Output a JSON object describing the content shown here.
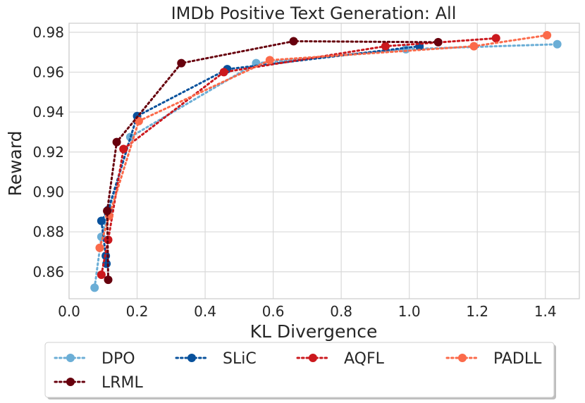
{
  "chart_data": {
    "type": "line",
    "title": "IMDb Positive Text Generation: All",
    "xlabel": "KL Divergence",
    "ylabel": "Reward",
    "xlim": [
      0.0,
      1.5
    ],
    "ylim": [
      0.8465,
      0.9845
    ],
    "xticks": [
      "0.0",
      "0.2",
      "0.4",
      "0.6",
      "0.8",
      "1.0",
      "1.2",
      "1.4"
    ],
    "yticks": [
      "0.86",
      "0.88",
      "0.90",
      "0.92",
      "0.94",
      "0.96",
      "0.98"
    ],
    "grid": true,
    "legend_position": "bottom",
    "series": [
      {
        "name": "DPO",
        "color": "#6baed6",
        "points": [
          [
            0.075,
            0.852
          ],
          [
            0.095,
            0.8775
          ],
          [
            0.115,
            0.8895
          ],
          [
            0.18,
            0.9275
          ],
          [
            0.55,
            0.9645
          ],
          [
            0.99,
            0.9715
          ],
          [
            1.435,
            0.974
          ]
        ]
      },
      {
        "name": "SLiC",
        "color": "#08519c",
        "points": [
          [
            0.11,
            0.864
          ],
          [
            0.108,
            0.868
          ],
          [
            0.095,
            0.8855
          ],
          [
            0.115,
            0.891
          ],
          [
            0.2,
            0.938
          ],
          [
            0.465,
            0.9615
          ],
          [
            1.03,
            0.973
          ]
        ]
      },
      {
        "name": "AQFL",
        "color": "#cb181d",
        "points": [
          [
            0.095,
            0.8585
          ],
          [
            0.115,
            0.876
          ],
          [
            0.16,
            0.9215
          ],
          [
            0.455,
            0.96
          ],
          [
            0.93,
            0.973
          ],
          [
            1.255,
            0.977
          ]
        ]
      },
      {
        "name": "PADLL",
        "color": "#fb6a4a",
        "points": [
          [
            0.09,
            0.872
          ],
          [
            0.118,
            0.888
          ],
          [
            0.205,
            0.9355
          ],
          [
            0.59,
            0.966
          ],
          [
            1.19,
            0.973
          ],
          [
            1.405,
            0.9785
          ]
        ]
      },
      {
        "name": "LRML",
        "color": "#67000d",
        "points": [
          [
            0.115,
            0.856
          ],
          [
            0.112,
            0.8905
          ],
          [
            0.14,
            0.925
          ],
          [
            0.33,
            0.9645
          ],
          [
            0.66,
            0.9755
          ],
          [
            1.085,
            0.975
          ]
        ]
      }
    ]
  }
}
